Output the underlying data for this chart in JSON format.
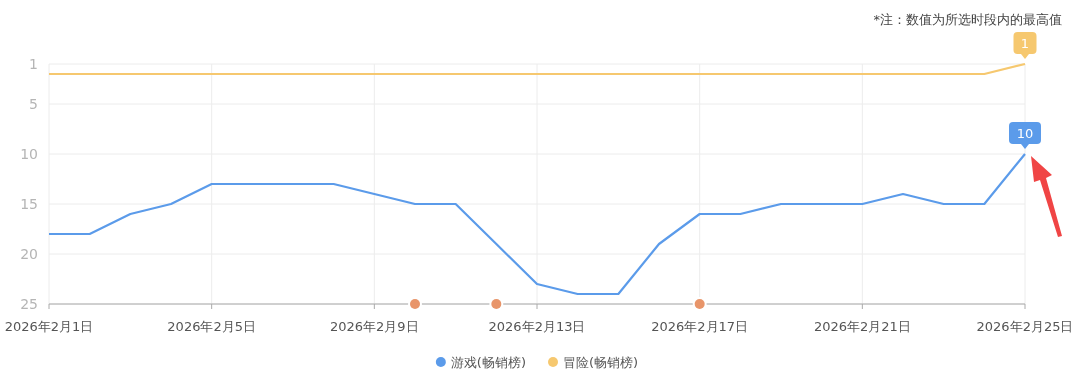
{
  "chart_data": {
    "type": "line",
    "annotations": [
      "*注：数值为所选时段内的最高值"
    ],
    "x": [
      "2026-02-01",
      "2026-02-02",
      "2026-02-03",
      "2026-02-04",
      "2026-02-05",
      "2026-02-06",
      "2026-02-07",
      "2026-02-08",
      "2026-02-09",
      "2026-02-10",
      "2026-02-11",
      "2026-02-12",
      "2026-02-13",
      "2026-02-14",
      "2026-02-15",
      "2026-02-16",
      "2026-02-17",
      "2026-02-18",
      "2026-02-19",
      "2026-02-20",
      "2026-02-21",
      "2026-02-22",
      "2026-02-23",
      "2026-02-24",
      "2026-02-25"
    ],
    "xlim": [
      "2026-02-01",
      "2026-02-25"
    ],
    "xticks": [
      {
        "value": "2026-02-01",
        "label": "2026年2月1日"
      },
      {
        "value": "2026-02-05",
        "label": "2026年2月5日"
      },
      {
        "value": "2026-02-09",
        "label": "2026年2月9日"
      },
      {
        "value": "2026-02-13",
        "label": "2026年2月13日"
      },
      {
        "value": "2026-02-17",
        "label": "2026年2月17日"
      },
      {
        "value": "2026-02-21",
        "label": "2026年2月21日"
      },
      {
        "value": "2026-02-25",
        "label": "2026年2月25日"
      }
    ],
    "ylim": [
      25,
      1
    ],
    "yticks": [
      1,
      5,
      10,
      15,
      20,
      25
    ],
    "grid": true,
    "legend": "bottom",
    "series": [
      {
        "name": "游戏(畅销榜)",
        "color": "#5b9bea",
        "values": [
          18,
          18,
          16,
          15,
          13,
          13,
          13,
          13,
          14,
          15,
          15,
          19,
          23,
          24,
          24,
          19,
          16,
          16,
          15,
          15,
          15,
          14,
          15,
          15,
          10
        ],
        "value_labels": [
          null,
          null,
          null,
          null,
          null,
          null,
          null,
          null,
          null,
          null,
          null,
          null,
          null,
          null,
          null,
          null,
          null,
          null,
          null,
          null,
          null,
          null,
          null,
          null,
          "10"
        ]
      },
      {
        "name": "冒险(畅销榜)",
        "color": "#f6c86f",
        "values": [
          2,
          2,
          2,
          2,
          2,
          2,
          2,
          2,
          2,
          2,
          2,
          2,
          2,
          2,
          2,
          2,
          2,
          2,
          2,
          2,
          2,
          2,
          2,
          2,
          1
        ],
        "value_labels": [
          null,
          null,
          null,
          null,
          null,
          null,
          null,
          null,
          null,
          null,
          null,
          null,
          null,
          null,
          null,
          null,
          null,
          null,
          null,
          null,
          null,
          null,
          null,
          null,
          "1"
        ]
      },
      {
        "type": "scatter",
        "color": "#e8956a",
        "x": [
          "2026-02-10",
          "2026-02-12",
          "2026-02-17"
        ],
        "values": [
          25,
          25,
          25
        ]
      }
    ]
  }
}
